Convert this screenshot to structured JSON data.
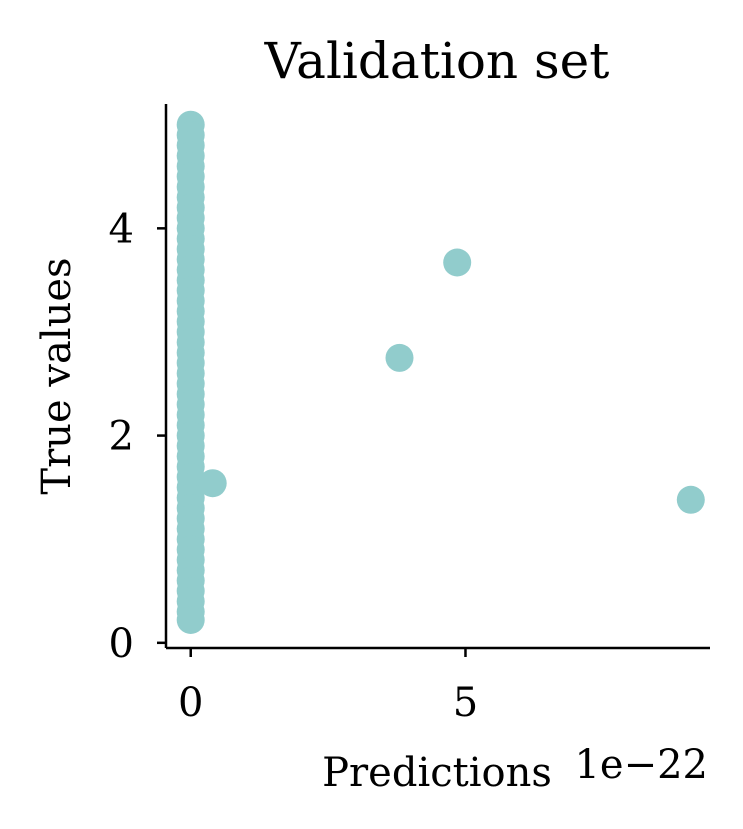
{
  "chart_data": {
    "type": "scatter",
    "title": "Validation set",
    "xlabel": "Predictions",
    "ylabel": "True values",
    "x_offset_label": "1e−22",
    "xlim": [
      -0.45,
      9.45
    ],
    "ylim": [
      -0.05,
      5.2
    ],
    "x_ticks": [
      {
        "value": 0,
        "label": "0"
      },
      {
        "value": 5,
        "label": "5"
      }
    ],
    "y_ticks": [
      {
        "value": 0,
        "label": "0"
      },
      {
        "value": 2,
        "label": "2"
      },
      {
        "value": 4,
        "label": "4"
      }
    ],
    "grid": false,
    "point_color": "#91cccc",
    "series": [
      {
        "points": [
          {
            "x": 0,
            "y": 5.0
          },
          {
            "x": 0,
            "y": 4.9
          },
          {
            "x": 0,
            "y": 4.8
          },
          {
            "x": 0,
            "y": 4.7
          },
          {
            "x": 0,
            "y": 4.6
          },
          {
            "x": 0,
            "y": 4.5
          },
          {
            "x": 0,
            "y": 4.4
          },
          {
            "x": 0,
            "y": 4.3
          },
          {
            "x": 0,
            "y": 4.2
          },
          {
            "x": 0,
            "y": 4.1
          },
          {
            "x": 0,
            "y": 4.0
          },
          {
            "x": 0,
            "y": 3.9
          },
          {
            "x": 0,
            "y": 3.8
          },
          {
            "x": 0,
            "y": 3.7
          },
          {
            "x": 0,
            "y": 3.6
          },
          {
            "x": 0,
            "y": 3.5
          },
          {
            "x": 0,
            "y": 3.4
          },
          {
            "x": 0,
            "y": 3.3
          },
          {
            "x": 0,
            "y": 3.2
          },
          {
            "x": 0,
            "y": 3.1
          },
          {
            "x": 0,
            "y": 3.0
          },
          {
            "x": 0,
            "y": 2.9
          },
          {
            "x": 0,
            "y": 2.8
          },
          {
            "x": 0,
            "y": 2.7
          },
          {
            "x": 0,
            "y": 2.6
          },
          {
            "x": 0,
            "y": 2.5
          },
          {
            "x": 0,
            "y": 2.4
          },
          {
            "x": 0,
            "y": 2.3
          },
          {
            "x": 0,
            "y": 2.2
          },
          {
            "x": 0,
            "y": 2.1
          },
          {
            "x": 0,
            "y": 2.0
          },
          {
            "x": 0,
            "y": 1.9
          },
          {
            "x": 0,
            "y": 1.8
          },
          {
            "x": 0,
            "y": 1.7
          },
          {
            "x": 0,
            "y": 1.6
          },
          {
            "x": 0,
            "y": 1.5
          },
          {
            "x": 0,
            "y": 1.4
          },
          {
            "x": 0,
            "y": 1.3
          },
          {
            "x": 0,
            "y": 1.2
          },
          {
            "x": 0,
            "y": 1.1
          },
          {
            "x": 0,
            "y": 1.0
          },
          {
            "x": 0,
            "y": 0.9
          },
          {
            "x": 0,
            "y": 0.8
          },
          {
            "x": 0,
            "y": 0.7
          },
          {
            "x": 0,
            "y": 0.6
          },
          {
            "x": 0,
            "y": 0.5
          },
          {
            "x": 0,
            "y": 0.4
          },
          {
            "x": 0,
            "y": 0.3
          },
          {
            "x": 0,
            "y": 0.22
          },
          {
            "x": 0.4,
            "y": 1.54
          },
          {
            "x": 3.8,
            "y": 2.75
          },
          {
            "x": 4.85,
            "y": 3.67
          },
          {
            "x": 9.1,
            "y": 1.38
          }
        ]
      }
    ]
  }
}
